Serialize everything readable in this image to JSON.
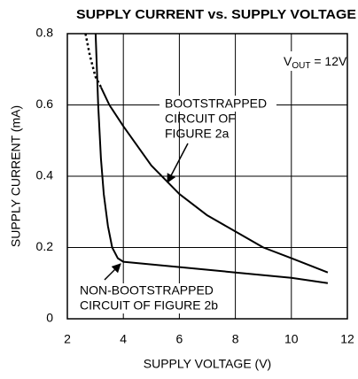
{
  "chart_data": {
    "type": "line",
    "title": "SUPPLY CURRENT vs. SUPPLY VOLTAGE",
    "x_label": "SUPPLY VOLTAGE (V)",
    "y_label": "SUPPLY CURRENT (mA)",
    "xlim": [
      2,
      12
    ],
    "ylim": [
      0,
      0.8
    ],
    "xticks": [
      2,
      4,
      6,
      8,
      10,
      12
    ],
    "yticks": [
      0,
      0.2,
      0.4,
      0.6,
      0.8
    ],
    "grid": true,
    "annotations": {
      "vout": {
        "main": "V",
        "sub": "OUT",
        "rest": " = 12V"
      },
      "bootstrapped": [
        "BOOTSTRAPPED",
        "CIRCUIT OF",
        "FIGURE 2a"
      ],
      "non_bootstrapped": [
        "NON-BOOTSTRAPPED",
        "CIRCUIT OF FIGURE 2b"
      ]
    },
    "series": [
      {
        "color": "#000000",
        "style": "dotted",
        "x": [
          2.65,
          2.8,
          3.0,
          3.2
        ],
        "values": [
          0.8,
          0.74,
          0.68,
          0.65
        ]
      },
      {
        "color": "#000000",
        "style": "solid",
        "x": [
          3.2,
          3.5,
          4,
          5,
          6,
          7,
          8,
          9,
          10,
          11.3
        ],
        "values": [
          0.65,
          0.6,
          0.54,
          0.43,
          0.35,
          0.29,
          0.245,
          0.2,
          0.17,
          0.13
        ]
      },
      {
        "color": "#000000",
        "style": "solid",
        "x": [
          3.01,
          3.1,
          3.2,
          3.3,
          3.45,
          3.6,
          3.8,
          4,
          6,
          8,
          10,
          11.3
        ],
        "values": [
          0.8,
          0.6,
          0.45,
          0.35,
          0.26,
          0.2,
          0.17,
          0.16,
          0.145,
          0.13,
          0.115,
          0.1
        ]
      }
    ]
  }
}
